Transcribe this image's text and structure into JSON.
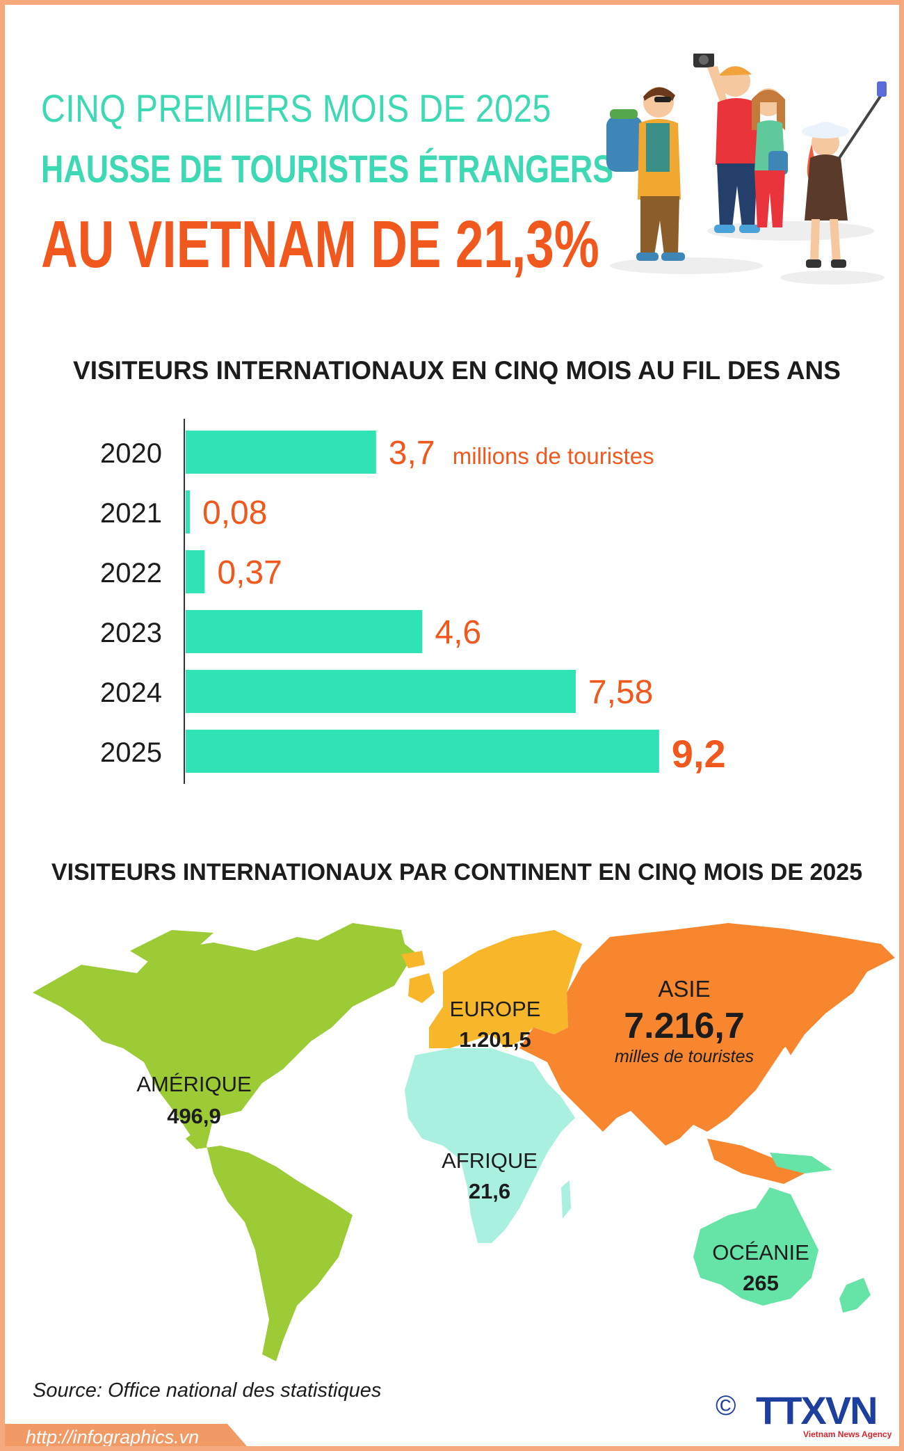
{
  "header": {
    "line1": "CINQ PREMIERS MOIS DE 2025",
    "line2": "HAUSSE DE TOURISTES ÉTRANGERS",
    "line3": "AU VIETNAM DE 21,3%"
  },
  "colors": {
    "teal": "#3dd8b4",
    "bar": "#2fe3b4",
    "orange_text": "#f0581e",
    "border": "#f5a97c",
    "amerique": "#9ccb35",
    "europe": "#f8b62a",
    "asie": "#f8862e",
    "afrique": "#aaf0e0",
    "oceanie": "#66e3a6",
    "logo": "#1f3f9e"
  },
  "illustration": {
    "icon": "tourists-group-illustration"
  },
  "chart_data": [
    {
      "type": "bar",
      "orientation": "horizontal",
      "title": "VISITEURS INTERNATIONAUX EN CINQ MOIS AU FIL DES ANS",
      "categories": [
        "2020",
        "2021",
        "2022",
        "2023",
        "2024",
        "2025"
      ],
      "values": [
        3.7,
        0.08,
        0.37,
        4.6,
        7.58,
        9.2
      ],
      "value_labels": [
        "3,7",
        "0,08",
        "0,37",
        "4,6",
        "7,58",
        "9,2"
      ],
      "unit_label": "millions de touristes",
      "grid": false
    },
    {
      "type": "map",
      "title": "VISITEURS INTERNATIONAUX PAR CONTINENT EN CINQ MOIS DE 2025",
      "unit_label": "milles de touristes",
      "regions": [
        {
          "name": "AMÉRIQUE",
          "value": 496.9,
          "label": "496,9",
          "color": "#9ccb35"
        },
        {
          "name": "EUROPE",
          "value": 1201.5,
          "label": "1.201,5",
          "color": "#f8b62a"
        },
        {
          "name": "ASIE",
          "value": 7216.7,
          "label": "7.216,7",
          "color": "#f8862e"
        },
        {
          "name": "AFRIQUE",
          "value": 21.6,
          "label": "21,6",
          "color": "#aaf0e0"
        },
        {
          "name": "OCÉANIE",
          "value": 265,
          "label": "265",
          "color": "#66e3a6"
        }
      ]
    }
  ],
  "footer": {
    "source": "Source: Office national des statistiques",
    "url": "http://infographics.vn",
    "copyright": "©",
    "logo": "TTXVN",
    "logo_sub": "Vietnam News Agency"
  }
}
